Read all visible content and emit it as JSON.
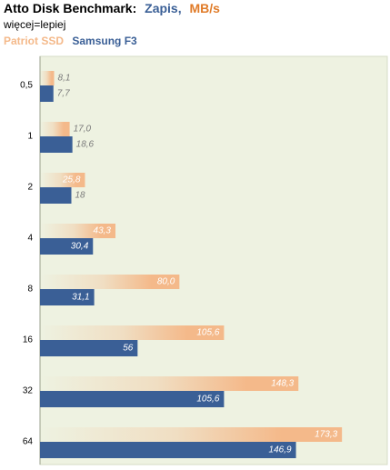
{
  "chart_data": {
    "type": "hbar",
    "title_parts": [
      "Atto Disk Benchmark:",
      "Zapis,",
      "MB/s"
    ],
    "title_colors": [
      "#000000",
      "#3a5f96",
      "#e07b28"
    ],
    "subtitle": "więcej=lepiej",
    "categories": [
      "0,5",
      "1",
      "2",
      "4",
      "8",
      "16",
      "32",
      "64"
    ],
    "series": [
      {
        "name": "Patriot SSD",
        "color": "#f4b98a",
        "values": [
          8.1,
          17.0,
          25.8,
          43.3,
          80.0,
          105.6,
          148.3,
          173.3
        ],
        "value_labels": [
          "8,1",
          "17,0",
          "25,8",
          "43,3",
          "80,0",
          "105,6",
          "148,3",
          "173,3"
        ]
      },
      {
        "name": "Samsung F3",
        "color": "#3a5f96",
        "values": [
          7.7,
          18.6,
          18,
          30.4,
          31.1,
          56,
          105.6,
          146.9
        ],
        "value_labels": [
          "7,7",
          "18,6",
          "18",
          "30,4",
          "31,1",
          "56",
          "105,6",
          "146,9"
        ]
      }
    ]
  }
}
